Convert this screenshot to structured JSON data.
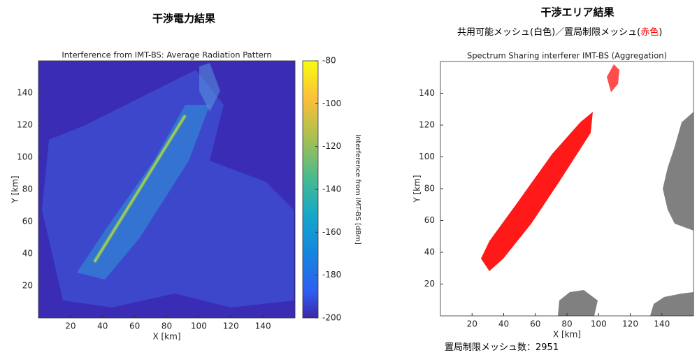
{
  "chart_data": [
    {
      "type": "heatmap",
      "heading": "干渉電力結果",
      "title": "Interference from IMT-BS: Average Radiation Pattern",
      "xlabel": "X [km]",
      "ylabel": "Y [km]",
      "xlim": [
        0,
        160
      ],
      "ylim": [
        0,
        160
      ],
      "xticks": [
        20,
        40,
        60,
        80,
        100,
        120,
        140
      ],
      "yticks": [
        20,
        40,
        60,
        80,
        100,
        120,
        140
      ],
      "colorbar": {
        "label": "Interference from IMT-BS [dBm]",
        "lim": [
          -200,
          -80
        ],
        "ticks": [
          -200,
          -180,
          -160,
          -140,
          -120,
          -100,
          -80
        ]
      }
    },
    {
      "type": "map",
      "heading": "干渉エリア結果",
      "subtitle": [
        "共用可能メッシュ(白色)／置局制限メッシュ(",
        "赤色",
        ")"
      ],
      "highlight_color": "#ff0000",
      "title": "Spectrum Sharing interferer IMT-BS (Aggregation)",
      "xlabel": "X [km]",
      "ylabel": "Y [km]",
      "xlim": [
        0,
        160
      ],
      "ylim": [
        0,
        160
      ],
      "xticks": [
        20,
        40,
        60,
        80,
        100,
        120,
        140
      ],
      "yticks": [
        20,
        40,
        60,
        80,
        100,
        120,
        140
      ],
      "count_label": "置局制限メッシュ数：",
      "count": 2951
    }
  ]
}
